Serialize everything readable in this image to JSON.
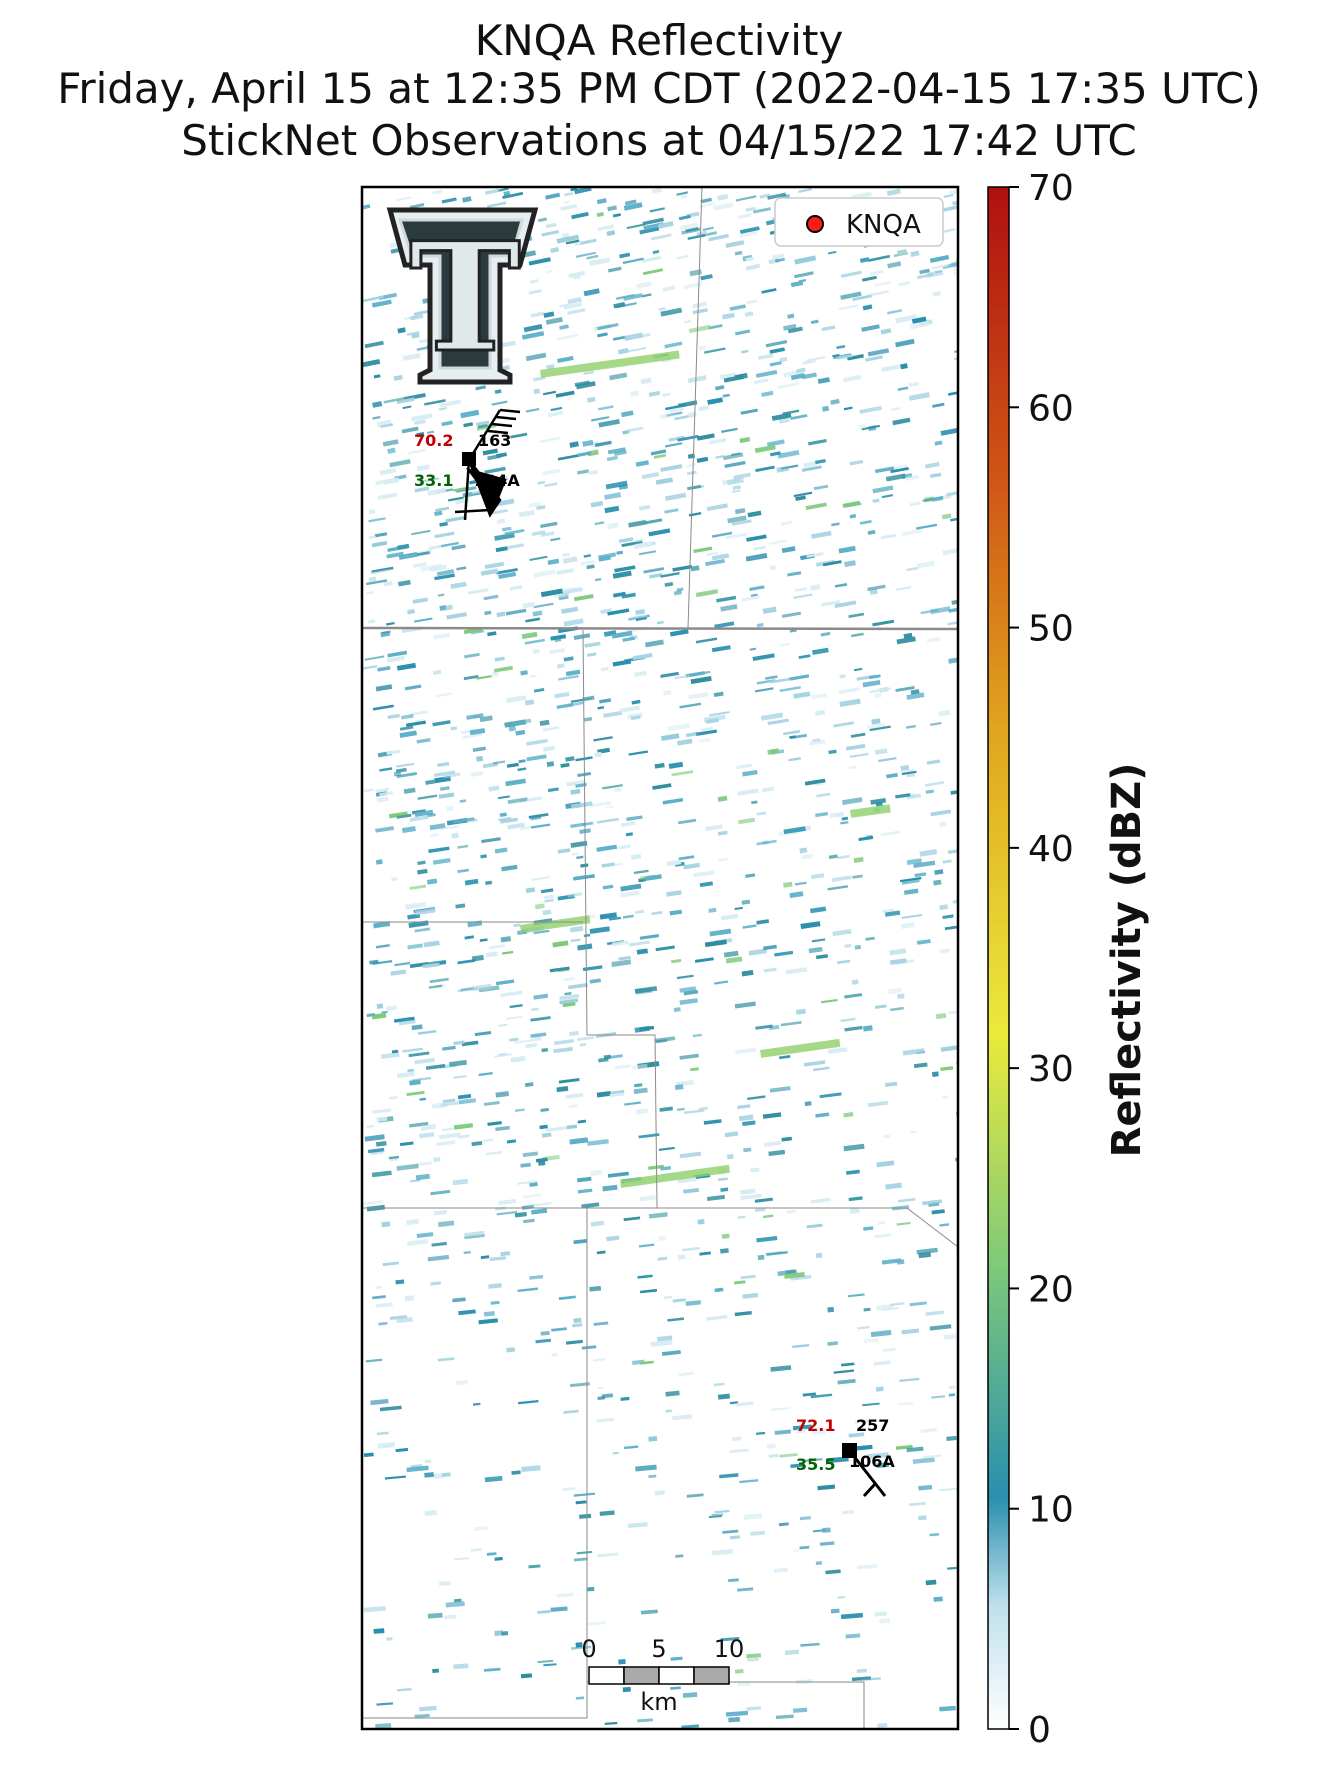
{
  "title": {
    "line1": "KNQA Reflectivity",
    "line2": "Friday, April 15 at 12:35 PM CDT (2022-04-15 17:35 UTC)",
    "line3": "StickNet Observations at 04/15/22 17:42 UTC"
  },
  "legend": {
    "label": "KNQA",
    "marker_color": "#ff1a1a"
  },
  "logo": {
    "text": "T"
  },
  "scale_bar": {
    "ticks": [
      "0",
      "5",
      "10"
    ],
    "unit": "km"
  },
  "stations": [
    {
      "id": "104A",
      "temp": "70.2",
      "dew": "33.1",
      "dir": "163"
    },
    {
      "id": "106A",
      "temp": "72.1",
      "dew": "35.5",
      "dir": "257"
    }
  ],
  "colorbar": {
    "label": "Reflectivity (dBZ)",
    "min": 0,
    "max": 70,
    "ticks": [
      0,
      10,
      20,
      30,
      40,
      50,
      60,
      70
    ],
    "colors": [
      "#ffffff",
      "#2a8fae",
      "#7ec97a",
      "#eaea3b",
      "#e0a41e",
      "#d15a16",
      "#b01010"
    ]
  },
  "colors": {
    "temp": "#c00000",
    "dew": "#006400",
    "station_text": "#000000"
  }
}
